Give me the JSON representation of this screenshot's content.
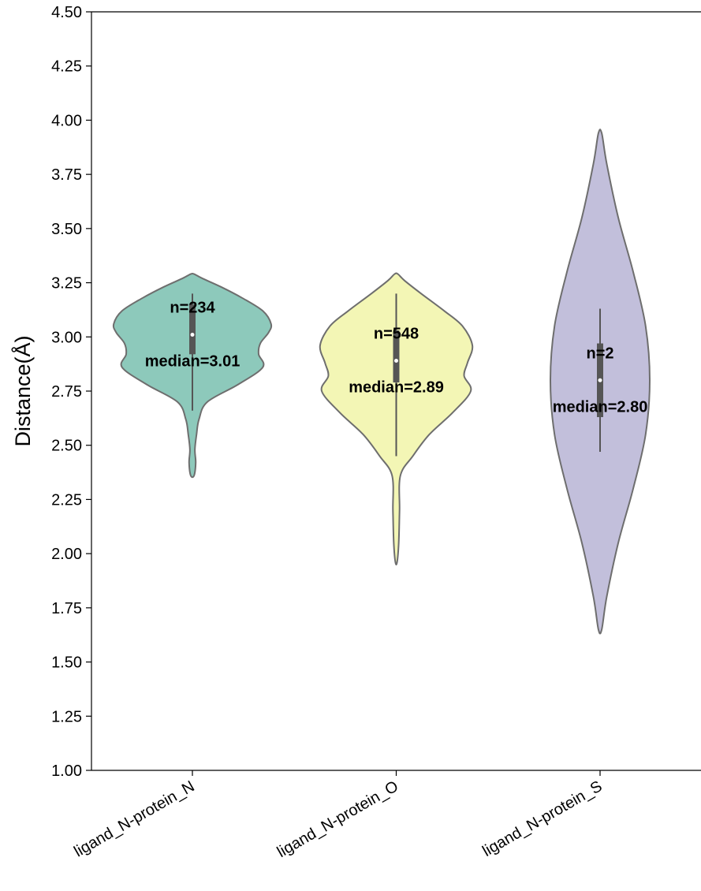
{
  "chart_data": {
    "type": "violin",
    "ylabel": "Distance(Å)",
    "xlabel": "",
    "title": "",
    "ylim": [
      1.0,
      4.5
    ],
    "yticks": [
      "1.00",
      "1.25",
      "1.50",
      "1.75",
      "2.00",
      "2.25",
      "2.50",
      "2.75",
      "3.00",
      "3.25",
      "3.50",
      "3.75",
      "4.00",
      "4.25",
      "4.50"
    ],
    "categories": [
      "ligand_N-protein_N",
      "ligand_N-protein_O",
      "ligand_N-protein_S"
    ],
    "series": [
      {
        "category": "ligand_N-protein_N",
        "color": "#8dc9bb",
        "n_label": "n=234",
        "median_label": "median=3.01",
        "median": 3.01,
        "q1": 2.92,
        "q3": 3.15,
        "whisker_low": 2.66,
        "whisker_high": 3.2,
        "min": 2.36,
        "max": 3.29,
        "profile": [
          [
            2.36,
            0.02
          ],
          [
            2.42,
            0.04
          ],
          [
            2.48,
            0.03
          ],
          [
            2.55,
            0.05
          ],
          [
            2.62,
            0.08
          ],
          [
            2.7,
            0.18
          ],
          [
            2.78,
            0.55
          ],
          [
            2.86,
            0.85
          ],
          [
            2.92,
            0.8
          ],
          [
            2.97,
            0.82
          ],
          [
            3.02,
            0.92
          ],
          [
            3.06,
            0.95
          ],
          [
            3.12,
            0.85
          ],
          [
            3.18,
            0.6
          ],
          [
            3.23,
            0.35
          ],
          [
            3.27,
            0.12
          ],
          [
            3.29,
            0.02
          ]
        ]
      },
      {
        "category": "ligand_N-protein_O",
        "color": "#f3f6b5",
        "n_label": "n=548",
        "median_label": "median=2.89",
        "median": 2.89,
        "q1": 2.79,
        "q3": 3.03,
        "whisker_low": 2.45,
        "whisker_high": 3.2,
        "min": 1.96,
        "max": 3.29,
        "profile": [
          [
            1.96,
            0.01
          ],
          [
            2.05,
            0.03
          ],
          [
            2.2,
            0.04
          ],
          [
            2.36,
            0.05
          ],
          [
            2.45,
            0.2
          ],
          [
            2.55,
            0.4
          ],
          [
            2.65,
            0.68
          ],
          [
            2.75,
            0.9
          ],
          [
            2.82,
            0.82
          ],
          [
            2.88,
            0.86
          ],
          [
            2.96,
            0.92
          ],
          [
            3.05,
            0.8
          ],
          [
            3.12,
            0.58
          ],
          [
            3.2,
            0.3
          ],
          [
            3.26,
            0.1
          ],
          [
            3.29,
            0.02
          ]
        ]
      },
      {
        "category": "ligand_N-protein_S",
        "color": "#c2bfdb",
        "n_label": "n=2",
        "median_label": "median=2.80",
        "median": 2.8,
        "q1": 2.63,
        "q3": 2.97,
        "whisker_low": 2.47,
        "whisker_high": 3.13,
        "min": 1.65,
        "max": 3.94,
        "profile": [
          [
            1.65,
            0.02
          ],
          [
            1.8,
            0.08
          ],
          [
            2.05,
            0.22
          ],
          [
            2.3,
            0.4
          ],
          [
            2.55,
            0.55
          ],
          [
            2.8,
            0.6
          ],
          [
            3.05,
            0.55
          ],
          [
            3.3,
            0.4
          ],
          [
            3.55,
            0.22
          ],
          [
            3.8,
            0.08
          ],
          [
            3.94,
            0.02
          ]
        ]
      }
    ]
  }
}
